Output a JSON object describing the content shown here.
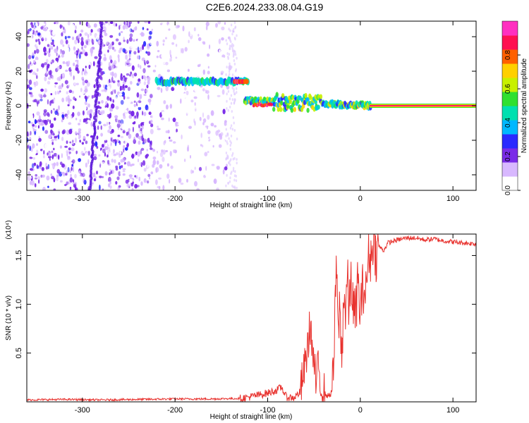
{
  "title": "C2E6.2024.233.08.04.G19",
  "colors": {
    "snr_line": "#e8322e",
    "scatter_purple": "#6a1fe0",
    "carrier": "#ff1a66"
  },
  "chart_data": [
    {
      "type": "heatmap",
      "name": "spectrogram",
      "xlabel": "Height of straight line (km)",
      "ylabel": "Frequency (Hz)",
      "xlim": [
        -360,
        125
      ],
      "ylim": [
        -49,
        49
      ],
      "xticks": [
        -300,
        -200,
        -100,
        0,
        100
      ],
      "yticks": [
        -40,
        -20,
        0,
        20,
        40
      ],
      "colorbar": {
        "label": "Normalized spectral amplitude",
        "range": [
          0,
          1
        ],
        "ticks": [
          "0.0",
          "0.2",
          "0.4",
          "0.6",
          "0.8"
        ],
        "tick_values": [
          0,
          0.2,
          0.4,
          0.6,
          0.8
        ],
        "colormap": [
          "#ffffff",
          "#d8b8ff",
          "#7a2be8",
          "#2a2aff",
          "#00b8ff",
          "#00e0b0",
          "#30e030",
          "#c8f000",
          "#ffd000",
          "#ff6000",
          "#ff1050",
          "#ff30c0"
        ]
      },
      "features": [
        {
          "name": "upper branch",
          "x_range": [
            -220,
            -120
          ],
          "freq": 14,
          "amplitude": 0.45
        },
        {
          "name": "main track",
          "x_range": [
            -125,
            10
          ],
          "freq_start": 3,
          "freq_end": 0,
          "amplitude": 0.55
        },
        {
          "name": "carrier",
          "x_range": [
            10,
            125
          ],
          "freq": 0,
          "amplitude": 0.95
        }
      ]
    },
    {
      "type": "line",
      "name": "snr",
      "xlabel": "Height of straight line (km)",
      "ylabel": "SNR (10 * v/v)",
      "y_multiplier": "(x10⁴)",
      "xlim": [
        -360,
        125
      ],
      "ylim": [
        0,
        1.72
      ],
      "xticks": [
        -300,
        -200,
        -100,
        0,
        100
      ],
      "yticks": [
        0.5,
        1.0,
        1.5
      ],
      "ytick_labels": [
        "0.5",
        "1.0",
        "1.5"
      ],
      "series": [
        {
          "points": [
            [
              -360,
              0.02
            ],
            [
              -320,
              0.025
            ],
            [
              -280,
              0.02
            ],
            [
              -240,
              0.025
            ],
            [
              -200,
              0.03
            ],
            [
              -160,
              0.03
            ],
            [
              -130,
              0.035
            ],
            [
              -120,
              0.05
            ],
            [
              -110,
              0.07
            ],
            [
              -100,
              0.09
            ],
            [
              -90,
              0.12
            ],
            [
              -85,
              0.15
            ],
            [
              -80,
              0.05
            ],
            [
              -72,
              0.04
            ],
            [
              -65,
              0.1
            ],
            [
              -60,
              0.35
            ],
            [
              -57,
              0.55
            ],
            [
              -54,
              0.8
            ],
            [
              -51,
              0.45
            ],
            [
              -48,
              0.2
            ],
            [
              -45,
              0.35
            ],
            [
              -42,
              0.15
            ],
            [
              -38,
              0.08
            ],
            [
              -35,
              0.06
            ],
            [
              -32,
              0.08
            ],
            [
              -30,
              0.15
            ],
            [
              -28,
              0.55
            ],
            [
              -26,
              1.45
            ],
            [
              -24,
              0.7
            ],
            [
              -22,
              1.0
            ],
            [
              -20,
              0.35
            ],
            [
              -18,
              1.15
            ],
            [
              -16,
              0.9
            ],
            [
              -14,
              1.28
            ],
            [
              -12,
              0.9
            ],
            [
              -10,
              1.3
            ],
            [
              -8,
              1.0
            ],
            [
              -5,
              0.85
            ],
            [
              -3,
              1.25
            ],
            [
              0,
              0.9
            ],
            [
              3,
              1.2
            ],
            [
              6,
              1.1
            ],
            [
              9,
              1.55
            ],
            [
              12,
              1.45
            ],
            [
              14,
              1.72
            ],
            [
              17,
              1.5
            ],
            [
              20,
              1.6
            ],
            [
              25,
              1.55
            ],
            [
              30,
              1.63
            ],
            [
              40,
              1.66
            ],
            [
              50,
              1.68
            ],
            [
              60,
              1.68
            ],
            [
              70,
              1.66
            ],
            [
              80,
              1.67
            ],
            [
              90,
              1.65
            ],
            [
              100,
              1.64
            ],
            [
              110,
              1.63
            ],
            [
              125,
              1.62
            ]
          ]
        }
      ]
    }
  ]
}
